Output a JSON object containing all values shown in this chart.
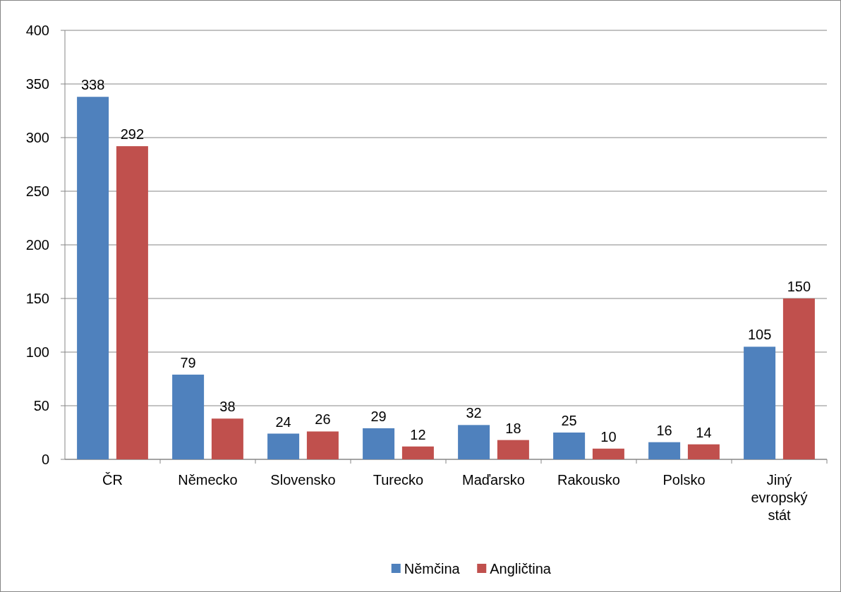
{
  "chart_data": {
    "type": "bar",
    "categories": [
      "ČR",
      "Německo",
      "Slovensko",
      "Turecko",
      "Maďarsko",
      "Rakousko",
      "Polsko",
      "Jiný evropský stát"
    ],
    "series": [
      {
        "name": "Němčina",
        "color": "#4f81bd",
        "values": [
          338,
          79,
          24,
          29,
          32,
          25,
          16,
          105
        ]
      },
      {
        "name": "Angličtina",
        "color": "#c0504d",
        "values": [
          292,
          38,
          26,
          12,
          18,
          10,
          14,
          150
        ]
      }
    ],
    "ylim": [
      0,
      400
    ],
    "yticks": [
      0,
      50,
      100,
      150,
      200,
      250,
      300,
      350,
      400
    ],
    "grid": "y",
    "legend": "bottom",
    "data_labels": true
  }
}
